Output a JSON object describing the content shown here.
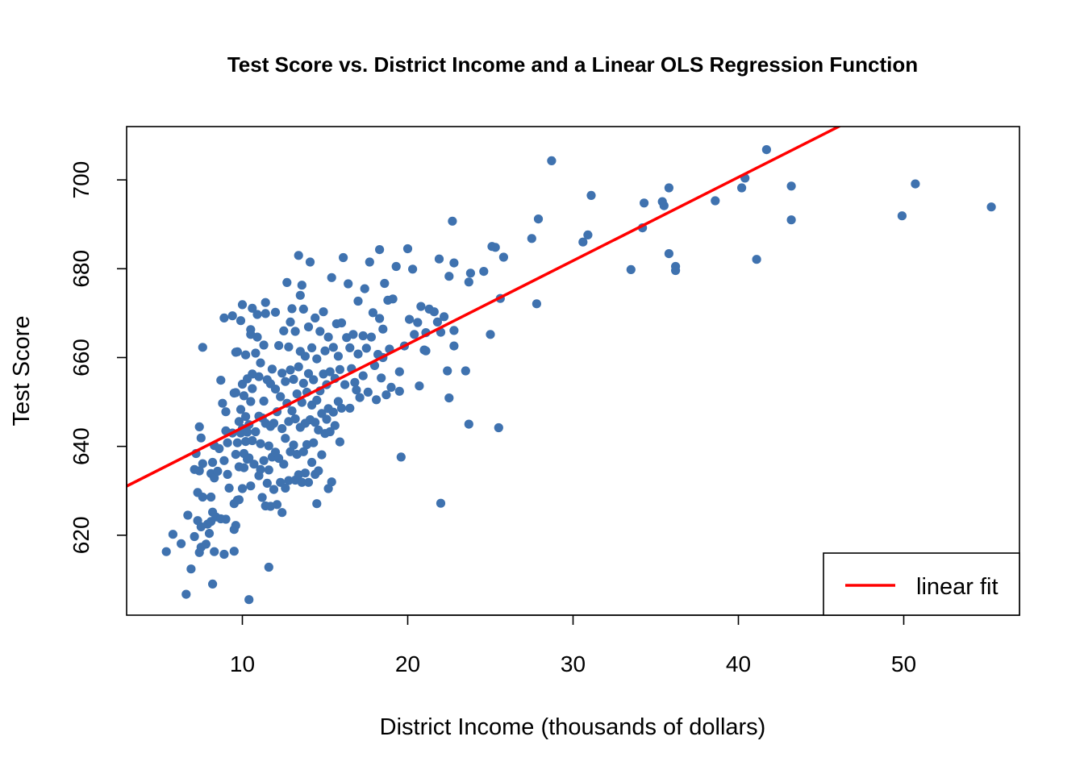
{
  "colors": {
    "points": "#3F72AF",
    "fit_line": "#FF0000",
    "axes": "#000000",
    "background": "#FFFFFF"
  },
  "chart_data": {
    "type": "scatter",
    "title": "Test Score vs. District Income and a Linear OLS Regression Function",
    "xlabel": "District Income (thousands of dollars)",
    "ylabel": "Test Score",
    "xlim": [
      3.0,
      57.0
    ],
    "ylim": [
      602,
      712
    ],
    "x_ticks": [
      10,
      20,
      30,
      40,
      50
    ],
    "y_ticks": [
      620,
      640,
      660,
      680,
      700
    ],
    "grid": false,
    "legend": {
      "position": "bottom-right",
      "entries": [
        {
          "label": "linear fit",
          "color": "#FF0000"
        }
      ]
    },
    "fit_line": {
      "label": "linear fit",
      "intercept": 625.4,
      "slope": 1.88
    },
    "points": [
      [
        5.4,
        616.3
      ],
      [
        5.8,
        620.2
      ],
      [
        6.3,
        618.1
      ],
      [
        6.6,
        606.7
      ],
      [
        6.7,
        624.5
      ],
      [
        6.9,
        612.4
      ],
      [
        7.1,
        619.7
      ],
      [
        7.1,
        634.8
      ],
      [
        7.2,
        638.4
      ],
      [
        7.3,
        623.3
      ],
      [
        7.3,
        629.6
      ],
      [
        7.4,
        616.1
      ],
      [
        7.4,
        634.5
      ],
      [
        7.4,
        644.4
      ],
      [
        7.5,
        617.3
      ],
      [
        7.5,
        621.9
      ],
      [
        7.5,
        641.9
      ],
      [
        7.6,
        628.6
      ],
      [
        7.6,
        636.1
      ],
      [
        7.6,
        662.3
      ],
      [
        7.8,
        618.0
      ],
      [
        7.9,
        622.5
      ],
      [
        8.0,
        620.4
      ],
      [
        8.1,
        623.1
      ],
      [
        8.1,
        628.6
      ],
      [
        8.1,
        633.9
      ],
      [
        8.2,
        609.0
      ],
      [
        8.2,
        625.2
      ],
      [
        8.2,
        636.4
      ],
      [
        8.3,
        616.3
      ],
      [
        8.3,
        632.9
      ],
      [
        8.3,
        640.2
      ],
      [
        8.4,
        624.1
      ],
      [
        8.5,
        634.4
      ],
      [
        8.6,
        639.5
      ],
      [
        8.7,
        623.7
      ],
      [
        8.7,
        654.9
      ],
      [
        8.8,
        649.7
      ],
      [
        8.9,
        615.7
      ],
      [
        8.9,
        636.8
      ],
      [
        8.9,
        668.9
      ],
      [
        9.0,
        623.6
      ],
      [
        9.0,
        643.5
      ],
      [
        9.0,
        647.8
      ],
      [
        9.1,
        633.7
      ],
      [
        9.1,
        640.8
      ],
      [
        9.2,
        630.6
      ],
      [
        9.4,
        643.0
      ],
      [
        9.4,
        669.4
      ],
      [
        9.5,
        616.4
      ],
      [
        9.5,
        621.3
      ],
      [
        9.5,
        627.1
      ],
      [
        9.5,
        652.0
      ],
      [
        9.6,
        622.2
      ],
      [
        9.6,
        638.2
      ],
      [
        9.6,
        652.1
      ],
      [
        9.6,
        661.2
      ],
      [
        9.7,
        627.9
      ],
      [
        9.7,
        640.8
      ],
      [
        9.7,
        661.3
      ],
      [
        9.8,
        628.0
      ],
      [
        9.8,
        635.4
      ],
      [
        9.8,
        645.6
      ],
      [
        9.9,
        643.0
      ],
      [
        9.9,
        648.3
      ],
      [
        9.9,
        668.3
      ],
      [
        10.0,
        630.5
      ],
      [
        10.0,
        644.0
      ],
      [
        10.0,
        654.0
      ],
      [
        10.0,
        671.9
      ],
      [
        10.1,
        635.2
      ],
      [
        10.1,
        638.4
      ],
      [
        10.1,
        651.4
      ],
      [
        10.2,
        641.1
      ],
      [
        10.2,
        646.7
      ],
      [
        10.2,
        660.6
      ],
      [
        10.3,
        637.1
      ],
      [
        10.3,
        643.2
      ],
      [
        10.3,
        655.2
      ],
      [
        10.4,
        605.5
      ],
      [
        10.4,
        637.4
      ],
      [
        10.4,
        644.9
      ],
      [
        10.5,
        631.1
      ],
      [
        10.5,
        650.1
      ],
      [
        10.5,
        665.2
      ],
      [
        10.6,
        641.3
      ],
      [
        10.6,
        653.0
      ],
      [
        10.6,
        656.3
      ],
      [
        10.6,
        671.1
      ],
      [
        10.7,
        636.0
      ],
      [
        10.8,
        643.3
      ],
      [
        10.8,
        661.0
      ],
      [
        10.9,
        664.6
      ],
      [
        10.9,
        669.7
      ],
      [
        11.0,
        633.4
      ],
      [
        11.0,
        646.8
      ],
      [
        11.0,
        655.7
      ],
      [
        11.1,
        634.8
      ],
      [
        11.1,
        640.6
      ],
      [
        11.1,
        658.8
      ],
      [
        11.2,
        628.5
      ],
      [
        11.2,
        646.4
      ],
      [
        11.3,
        636.8
      ],
      [
        11.3,
        650.2
      ],
      [
        11.3,
        662.8
      ],
      [
        11.4,
        626.6
      ],
      [
        11.4,
        645.2
      ],
      [
        11.4,
        669.9
      ],
      [
        11.5,
        631.7
      ],
      [
        11.5,
        655.0
      ],
      [
        11.6,
        612.8
      ],
      [
        11.6,
        634.7
      ],
      [
        11.6,
        640.1
      ],
      [
        11.7,
        626.5
      ],
      [
        11.7,
        644.5
      ],
      [
        11.7,
        654.1
      ],
      [
        11.8,
        637.6
      ],
      [
        11.8,
        657.4
      ],
      [
        11.9,
        630.3
      ],
      [
        11.9,
        645.2
      ],
      [
        12.0,
        638.7
      ],
      [
        12.0,
        652.9
      ],
      [
        12.0,
        670.2
      ],
      [
        12.1,
        626.9
      ],
      [
        12.1,
        647.8
      ],
      [
        12.2,
        637.3
      ],
      [
        12.2,
        662.7
      ],
      [
        12.3,
        631.9
      ],
      [
        12.3,
        651.2
      ],
      [
        12.4,
        625.1
      ],
      [
        12.4,
        644.0
      ],
      [
        12.4,
        656.5
      ],
      [
        12.5,
        636.0
      ],
      [
        12.5,
        666.0
      ],
      [
        12.6,
        630.6
      ],
      [
        12.6,
        641.8
      ],
      [
        12.6,
        654.6
      ],
      [
        12.7,
        649.7
      ],
      [
        12.7,
        676.9
      ],
      [
        12.8,
        632.3
      ],
      [
        12.8,
        645.6
      ],
      [
        12.8,
        662.4
      ],
      [
        12.9,
        638.8
      ],
      [
        12.9,
        657.2
      ],
      [
        13.0,
        648.0
      ],
      [
        13.0,
        671.0
      ],
      [
        13.1,
        640.3
      ],
      [
        13.1,
        655.1
      ],
      [
        13.2,
        632.4
      ],
      [
        13.2,
        646.2
      ],
      [
        13.2,
        665.9
      ],
      [
        13.3,
        638.2
      ],
      [
        13.3,
        651.8
      ],
      [
        13.4,
        633.6
      ],
      [
        13.4,
        657.9
      ],
      [
        13.4,
        683.0
      ],
      [
        13.5,
        644.3
      ],
      [
        13.5,
        661.4
      ],
      [
        13.5,
        674.0
      ],
      [
        13.6,
        631.9
      ],
      [
        13.6,
        649.9
      ],
      [
        13.7,
        638.8
      ],
      [
        13.7,
        654.2
      ],
      [
        13.7,
        670.9
      ],
      [
        13.8,
        634.0
      ],
      [
        13.8,
        645.2
      ],
      [
        13.8,
        660.3
      ],
      [
        13.9,
        640.4
      ],
      [
        13.9,
        652.2
      ],
      [
        14.0,
        631.9
      ],
      [
        14.0,
        656.4
      ],
      [
        14.0,
        666.9
      ],
      [
        14.1,
        646.0
      ],
      [
        14.1,
        681.5
      ],
      [
        14.2,
        636.4
      ],
      [
        14.2,
        649.3
      ],
      [
        14.2,
        662.2
      ],
      [
        14.3,
        640.8
      ],
      [
        14.3,
        655.0
      ],
      [
        14.4,
        633.7
      ],
      [
        14.4,
        645.4
      ],
      [
        14.4,
        668.9
      ],
      [
        14.5,
        627.1
      ],
      [
        14.5,
        650.4
      ],
      [
        14.5,
        659.7
      ],
      [
        14.6,
        634.5
      ],
      [
        14.6,
        643.7
      ],
      [
        14.7,
        652.5
      ],
      [
        14.7,
        665.9
      ],
      [
        14.8,
        638.1
      ],
      [
        14.8,
        647.4
      ],
      [
        14.9,
        656.3
      ],
      [
        14.9,
        670.3
      ],
      [
        15.0,
        642.9
      ],
      [
        15.0,
        661.5
      ],
      [
        15.1,
        646.1
      ],
      [
        15.1,
        653.9
      ],
      [
        15.2,
        630.5
      ],
      [
        15.2,
        648.5
      ],
      [
        15.2,
        664.6
      ],
      [
        15.3,
        643.3
      ],
      [
        15.3,
        656.8
      ],
      [
        15.4,
        632.0
      ],
      [
        15.4,
        678.0
      ],
      [
        15.5,
        647.7
      ],
      [
        15.5,
        662.3
      ],
      [
        15.6,
        644.7
      ],
      [
        15.6,
        655.3
      ],
      [
        15.7,
        667.6
      ],
      [
        15.8,
        650.1
      ],
      [
        15.8,
        660.3
      ],
      [
        15.9,
        641.0
      ],
      [
        15.9,
        657.3
      ],
      [
        16.0,
        648.6
      ],
      [
        16.0,
        667.8
      ],
      [
        16.1,
        682.5
      ],
      [
        16.2,
        653.9
      ],
      [
        16.3,
        664.5
      ],
      [
        16.4,
        676.6
      ],
      [
        16.5,
        648.6
      ],
      [
        16.5,
        662.2
      ],
      [
        16.6,
        657.5
      ],
      [
        16.7,
        665.2
      ],
      [
        16.8,
        654.4
      ],
      [
        17.0,
        672.7
      ],
      [
        17.0,
        660.8
      ],
      [
        17.1,
        651.0
      ],
      [
        17.3,
        664.9
      ],
      [
        17.4,
        675.5
      ],
      [
        17.5,
        662.1
      ],
      [
        17.6,
        652.2
      ],
      [
        17.7,
        681.5
      ],
      [
        17.8,
        664.6
      ],
      [
        17.9,
        670.1
      ],
      [
        18.0,
        658.2
      ],
      [
        18.1,
        650.5
      ],
      [
        18.2,
        660.7
      ],
      [
        18.3,
        684.3
      ],
      [
        18.3,
        668.8
      ],
      [
        18.4,
        655.4
      ],
      [
        18.5,
        666.4
      ],
      [
        18.6,
        676.7
      ],
      [
        18.7,
        651.6
      ],
      [
        18.8,
        672.9
      ],
      [
        18.9,
        661.9
      ],
      [
        19.0,
        653.3
      ],
      [
        19.1,
        673.2
      ],
      [
        19.3,
        680.5
      ],
      [
        19.5,
        652.4
      ],
      [
        19.6,
        637.6
      ],
      [
        19.8,
        662.6
      ],
      [
        20.0,
        684.5
      ],
      [
        20.1,
        668.6
      ],
      [
        20.3,
        679.9
      ],
      [
        20.4,
        665.2
      ],
      [
        20.6,
        667.9
      ],
      [
        20.7,
        653.6
      ],
      [
        20.8,
        671.5
      ],
      [
        21.0,
        661.7
      ],
      [
        21.1,
        665.6
      ],
      [
        21.3,
        670.9
      ],
      [
        21.6,
        670.3
      ],
      [
        21.8,
        668.0
      ],
      [
        21.9,
        682.2
      ],
      [
        22.0,
        627.2
      ],
      [
        22.0,
        665.7
      ],
      [
        22.2,
        669.2
      ],
      [
        22.4,
        657.0
      ],
      [
        22.5,
        678.3
      ],
      [
        22.5,
        650.9
      ],
      [
        22.7,
        690.7
      ],
      [
        22.8,
        666.1
      ],
      [
        22.8,
        662.6
      ],
      [
        22.8,
        681.3
      ],
      [
        23.5,
        657.0
      ],
      [
        23.7,
        677.0
      ],
      [
        23.8,
        679.0
      ],
      [
        23.7,
        645.0
      ],
      [
        24.6,
        679.4
      ],
      [
        25.0,
        665.2
      ],
      [
        25.1,
        685.0
      ],
      [
        25.3,
        684.8
      ],
      [
        25.5,
        644.2
      ],
      [
        25.8,
        682.6
      ],
      [
        25.6,
        673.3
      ],
      [
        27.5,
        686.8
      ],
      [
        27.8,
        672.1
      ],
      [
        27.9,
        691.2
      ],
      [
        28.7,
        704.3
      ],
      [
        30.6,
        686.0
      ],
      [
        30.9,
        687.6
      ],
      [
        31.1,
        696.5
      ],
      [
        33.5,
        679.8
      ],
      [
        34.2,
        689.2
      ],
      [
        34.3,
        694.8
      ],
      [
        35.4,
        695.1
      ],
      [
        35.5,
        694.2
      ],
      [
        35.8,
        698.2
      ],
      [
        35.8,
        683.4
      ],
      [
        36.2,
        680.5
      ],
      [
        36.2,
        679.6
      ],
      [
        38.6,
        695.3
      ],
      [
        40.2,
        698.2
      ],
      [
        40.4,
        700.4
      ],
      [
        41.1,
        682.1
      ],
      [
        41.7,
        706.8
      ],
      [
        43.2,
        698.6
      ],
      [
        43.2,
        691.0
      ],
      [
        49.9,
        691.9
      ],
      [
        50.7,
        699.1
      ],
      [
        55.3,
        693.9
      ],
      [
        21.1,
        661.5
      ],
      [
        19.5,
        656.8
      ],
      [
        17.3,
        655.9
      ],
      [
        16.9,
        652.7
      ],
      [
        18.5,
        660.0
      ],
      [
        13.6,
        676.3
      ],
      [
        12.9,
        668.0
      ],
      [
        11.4,
        672.4
      ],
      [
        10.5,
        666.3
      ]
    ]
  }
}
